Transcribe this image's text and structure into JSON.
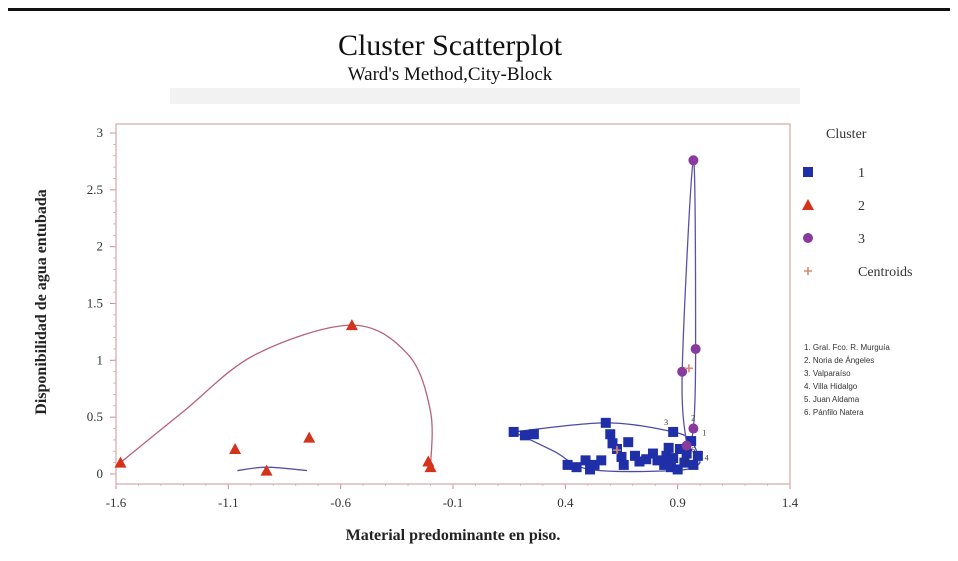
{
  "chart_data": {
    "type": "scatter",
    "title": "Cluster Scatterplot",
    "subtitle": "Ward's Method,City-Block",
    "xlabel": "Material predominante en piso.",
    "ylabel": "Disponibilidad de agua entubada",
    "xlim": [
      -1.6,
      1.4
    ],
    "ylim": [
      0,
      3
    ],
    "x_ticks": [
      "-1.6",
      "-1.1",
      "-0.6",
      "-0.1",
      "0.4",
      "0.9",
      "1.4"
    ],
    "y_ticks": [
      "0",
      "0.5",
      "1",
      "1.5",
      "2",
      "2.5",
      "3"
    ],
    "legend": {
      "title": "Cluster",
      "entries": [
        {
          "label": "1",
          "marker": "square",
          "color": "#1f2fa8"
        },
        {
          "label": "2",
          "marker": "triangle",
          "color": "#d4321a"
        },
        {
          "label": "3",
          "marker": "circle",
          "color": "#8a3a9e"
        },
        {
          "label": "Centroids",
          "marker": "plus",
          "color": "#d98a70"
        }
      ]
    },
    "notes": [
      "1. Gral. Fco. R. Murguía",
      "2. Noria de Ángeles",
      "3. Valparaíso",
      "4. Villa Hidalgo",
      "5. Juan Aldama",
      "6. Pánfilo Natera"
    ],
    "series": [
      {
        "name": "1",
        "marker": "square",
        "color": "#1f2fa8",
        "points": [
          [
            0.17,
            0.37
          ],
          [
            0.22,
            0.34
          ],
          [
            0.26,
            0.35
          ],
          [
            0.41,
            0.08
          ],
          [
            0.45,
            0.06
          ],
          [
            0.49,
            0.12
          ],
          [
            0.51,
            0.04
          ],
          [
            0.53,
            0.08
          ],
          [
            0.56,
            0.12
          ],
          [
            0.58,
            0.45
          ],
          [
            0.6,
            0.35
          ],
          [
            0.61,
            0.27
          ],
          [
            0.63,
            0.22
          ],
          [
            0.65,
            0.15
          ],
          [
            0.66,
            0.08
          ],
          [
            0.68,
            0.28
          ],
          [
            0.71,
            0.16
          ],
          [
            0.73,
            0.11
          ],
          [
            0.76,
            0.13
          ],
          [
            0.79,
            0.18
          ],
          [
            0.81,
            0.12
          ],
          [
            0.84,
            0.08
          ],
          [
            0.85,
            0.16
          ],
          [
            0.86,
            0.23
          ],
          [
            0.87,
            0.06
          ],
          [
            0.88,
            0.37
          ],
          [
            0.88,
            0.14
          ],
          [
            0.9,
            0.04
          ],
          [
            0.91,
            0.22
          ],
          [
            0.93,
            0.1
          ],
          [
            0.94,
            0.18
          ],
          [
            0.96,
            0.29
          ],
          [
            0.97,
            0.08
          ],
          [
            0.99,
            0.16
          ]
        ]
      },
      {
        "name": "2",
        "marker": "triangle",
        "color": "#d4321a",
        "points": [
          [
            -1.58,
            0.1
          ],
          [
            -1.07,
            0.22
          ],
          [
            -0.93,
            0.03
          ],
          [
            -0.74,
            0.32
          ],
          [
            -0.55,
            1.31
          ],
          [
            -0.21,
            0.11
          ],
          [
            -0.2,
            0.06
          ]
        ]
      },
      {
        "name": "3",
        "marker": "circle",
        "color": "#8a3a9e",
        "points": [
          [
            0.97,
            2.76
          ],
          [
            0.98,
            1.1
          ],
          [
            0.92,
            0.9
          ],
          [
            0.97,
            0.4
          ],
          [
            0.94,
            0.25
          ]
        ]
      },
      {
        "name": "Centroids",
        "marker": "plus",
        "color": "#d98a70",
        "points": [
          [
            0.95,
            0.93
          ],
          [
            0.63,
            0.21
          ]
        ]
      }
    ],
    "point_labels": [
      {
        "text": "1",
        "x": 1.01,
        "y": 0.34
      },
      {
        "text": "2",
        "x": 0.96,
        "y": 0.47
      },
      {
        "text": "3",
        "x": 0.84,
        "y": 0.43
      },
      {
        "text": "4",
        "x": 1.02,
        "y": 0.12
      },
      {
        "text": "5",
        "x": 0.93,
        "y": 0.09
      },
      {
        "text": "6",
        "x": 0.96,
        "y": 0.19
      }
    ],
    "hulls": [
      {
        "cluster": "2",
        "color": "#b8627a",
        "points": [
          [
            -1.58,
            0.1
          ],
          [
            -1.3,
            0.55
          ],
          [
            -0.98,
            1.05
          ],
          [
            -0.55,
            1.31
          ],
          [
            -0.3,
            1.05
          ],
          [
            -0.2,
            0.55
          ],
          [
            -0.2,
            0.06
          ]
        ]
      },
      {
        "cluster": "2",
        "color": "#5a52a8",
        "points": [
          [
            -1.06,
            0.03
          ],
          [
            -0.93,
            0.06
          ],
          [
            -0.75,
            0.03
          ]
        ]
      },
      {
        "cluster": "1",
        "color": "#4a4aa8",
        "points": [
          [
            0.17,
            0.37
          ],
          [
            0.35,
            0.2
          ],
          [
            0.51,
            0.04
          ],
          [
            0.88,
            0.03
          ],
          [
            0.99,
            0.08
          ],
          [
            0.99,
            0.16
          ],
          [
            0.96,
            0.29
          ],
          [
            0.88,
            0.37
          ],
          [
            0.58,
            0.45
          ],
          [
            0.17,
            0.37
          ]
        ]
      },
      {
        "cluster": "3",
        "color": "#5a52a8",
        "points": [
          [
            0.94,
            0.25
          ],
          [
            0.92,
            0.9
          ],
          [
            0.97,
            2.76
          ],
          [
            0.98,
            1.1
          ],
          [
            0.97,
            0.4
          ],
          [
            0.94,
            0.25
          ]
        ]
      }
    ]
  }
}
